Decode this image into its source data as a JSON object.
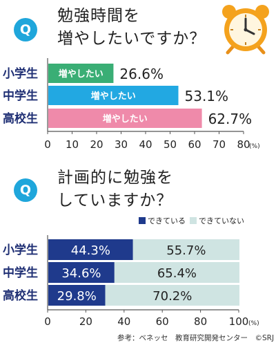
{
  "q1": {
    "badge": "Q",
    "title_line1": "勉強時間を",
    "title_line2": "増やしたいですか？"
  },
  "q2": {
    "badge": "Q",
    "title_line1": "計画的に勉強を",
    "title_line2": "していますか？"
  },
  "source": "参考：ベネッセ　教育研究開発センター　©SRJ",
  "colors": {
    "badge": "#1fa6db",
    "elementary": "#3aae75",
    "junior_high": "#22a8e2",
    "high_school": "#ef8aaa",
    "doing": "#1f3a8c",
    "not_doing": "#cfe4e2",
    "label": "#1f2f74",
    "clock": "#f4a21d"
  },
  "clock_icon": "alarm-clock-icon",
  "chart_data": [
    {
      "type": "bar",
      "orientation": "horizontal",
      "categories": [
        "小学生",
        "中学生",
        "高校生"
      ],
      "values": [
        26.6,
        53.1,
        62.7
      ],
      "value_labels": [
        "26.6%",
        "53.1%",
        "62.7%"
      ],
      "bar_text": "増やしたい",
      "xlim": [
        0,
        80
      ],
      "xticks": [
        "0",
        "10",
        "20",
        "30",
        "40",
        "50",
        "60",
        "70",
        "80"
      ],
      "x_unit": "(%)"
    },
    {
      "type": "bar",
      "orientation": "horizontal",
      "stacked": true,
      "categories": [
        "小学生",
        "中学生",
        "高校生"
      ],
      "series": [
        {
          "name": "できている",
          "values": [
            44.3,
            34.6,
            29.8
          ],
          "labels": [
            "44.3%",
            "34.6%",
            "29.8%"
          ]
        },
        {
          "name": "できていない",
          "values": [
            55.7,
            65.4,
            70.2
          ],
          "labels": [
            "55.7%",
            "65.4%",
            "70.2%"
          ]
        }
      ],
      "xlim": [
        0,
        100
      ],
      "xticks": [
        "0",
        "20",
        "40",
        "60",
        "80",
        "100"
      ],
      "x_unit": "(%)",
      "legend": "top-right"
    }
  ]
}
